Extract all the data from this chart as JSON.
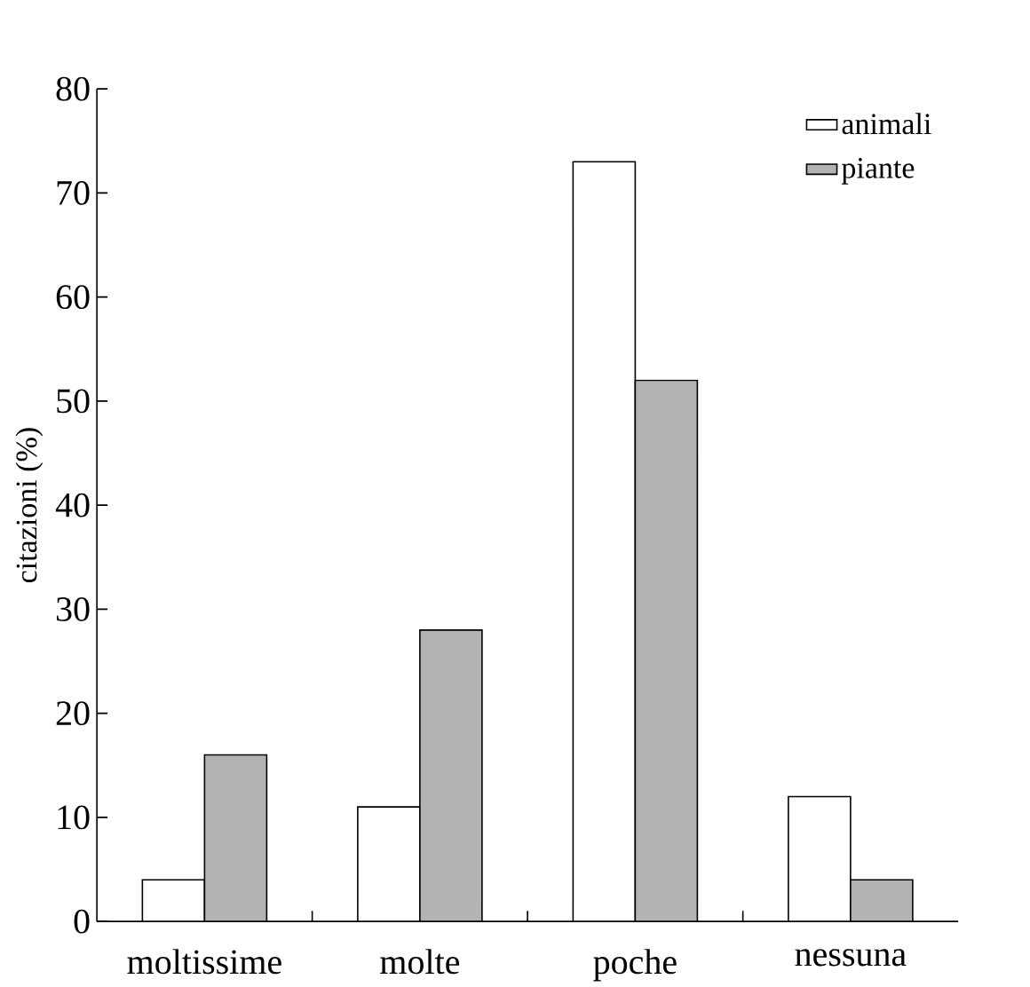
{
  "chart_data": {
    "type": "bar",
    "ylabel": "citazioni (%)",
    "categories": [
      "moltissime",
      "molte",
      "poche",
      "nessuna"
    ],
    "series": [
      {
        "name": "animali",
        "color": "#ffffff",
        "values": [
          4,
          11,
          73,
          12
        ]
      },
      {
        "name": "piante",
        "color": "#b3b3b3",
        "values": [
          16,
          28,
          52,
          4
        ]
      }
    ],
    "ylim": [
      0,
      80
    ],
    "yticks": [
      0,
      10,
      20,
      30,
      40,
      50,
      60,
      70,
      80
    ],
    "legend": "top right",
    "grid": false
  }
}
